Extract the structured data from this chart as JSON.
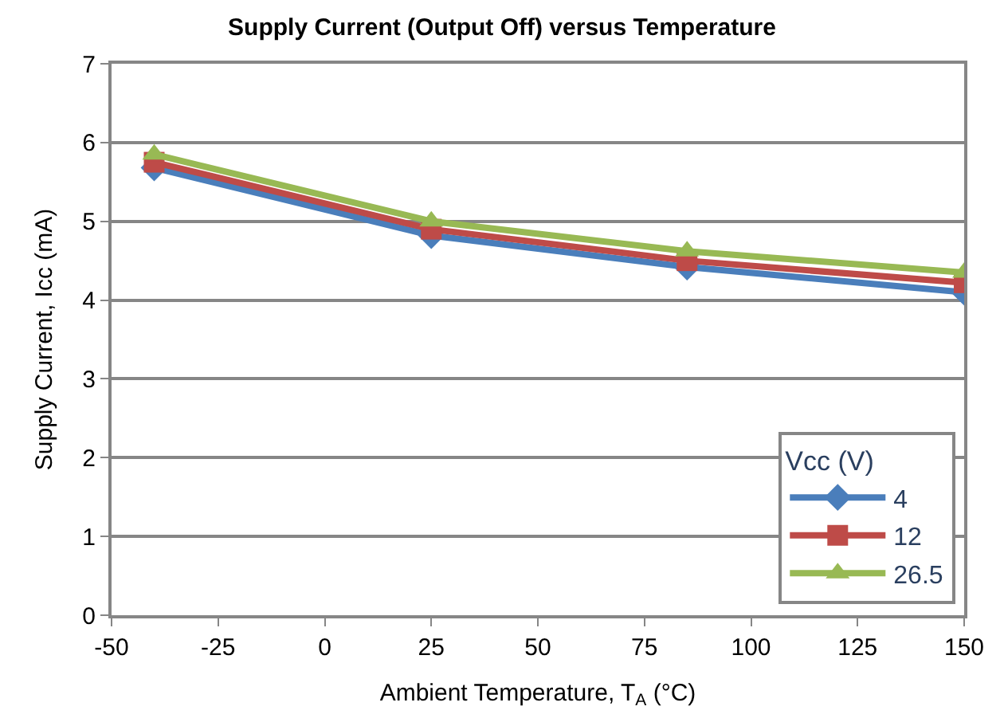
{
  "chart_data": {
    "type": "line",
    "title": "Supply Current (Output Off) versus Temperature",
    "xlabel": "Ambient Temperature, T$_{A}$ (°C)",
    "ylabel": "Supply Current, Icc (mA)",
    "legend_title": "Vcc (V)",
    "x": [
      -40,
      25,
      85,
      150
    ],
    "series": [
      {
        "name": "4",
        "color": "#4a7ebb",
        "marker": "diamond",
        "values": [
          5.68,
          4.82,
          4.42,
          4.1
        ]
      },
      {
        "name": "12",
        "color": "#be4b48",
        "marker": "square",
        "values": [
          5.75,
          4.9,
          4.5,
          4.22
        ]
      },
      {
        "name": "26.5",
        "color": "#98b954",
        "marker": "triangle",
        "values": [
          5.85,
          5.0,
          4.62,
          4.35
        ]
      }
    ],
    "xlim": [
      -50,
      150
    ],
    "xticks": [
      -50,
      -25,
      0,
      25,
      50,
      75,
      100,
      125,
      150
    ],
    "ylim": [
      0,
      7
    ],
    "yticks": [
      0,
      1,
      2,
      3,
      4,
      5,
      6,
      7
    ],
    "grid": "y",
    "legend": "bottom right",
    "line_style": "solid"
  }
}
